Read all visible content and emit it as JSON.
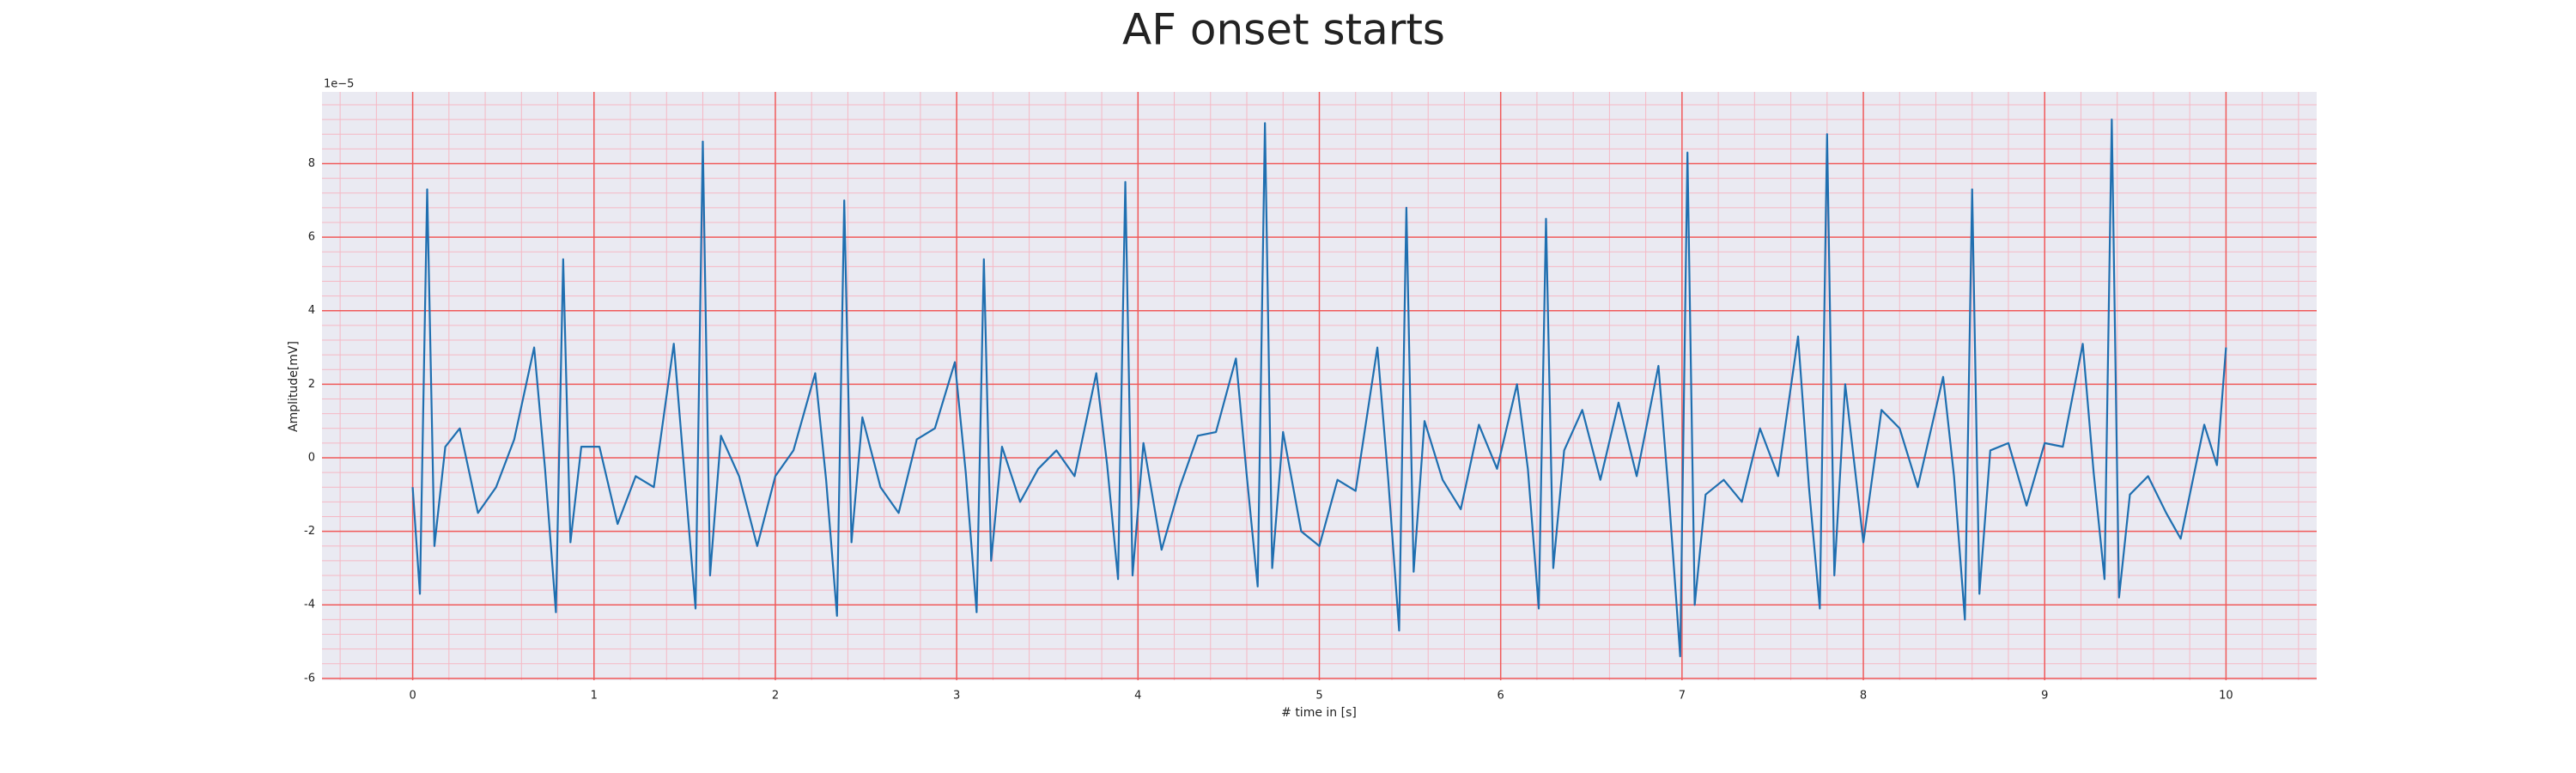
{
  "chart_data": {
    "type": "line",
    "title": "AF onset starts",
    "xlabel": "# time in [s]",
    "ylabel": "Amplitude[mV]",
    "y_offset_label": "1e−5",
    "xlim": [
      -0.5,
      10.5
    ],
    "xticks": [
      0,
      1,
      2,
      3,
      4,
      5,
      6,
      7,
      8,
      9,
      10
    ],
    "ylim": [
      -6.05,
      9.95
    ],
    "yticks": [
      -6,
      -4,
      -2,
      0,
      2,
      4,
      6,
      8
    ],
    "grid": true,
    "minor_grid": true,
    "background": "#eaeaf2",
    "grid_color": "#f05a5a",
    "minor_grid_color": "#f5b8c4",
    "series": [
      {
        "color": "#1f6fb0",
        "x": [
          0.0,
          0.04,
          0.08,
          0.12,
          0.18,
          0.26,
          0.36,
          0.46,
          0.56,
          0.67,
          0.73,
          0.79,
          0.83,
          0.87,
          0.93,
          1.03,
          1.13,
          1.23,
          1.33,
          1.44,
          1.5,
          1.56,
          1.6,
          1.64,
          1.7,
          1.8,
          1.9,
          2.0,
          2.1,
          2.22,
          2.28,
          2.34,
          2.38,
          2.42,
          2.48,
          2.58,
          2.68,
          2.78,
          2.88,
          2.99,
          3.05,
          3.11,
          3.15,
          3.19,
          3.25,
          3.35,
          3.45,
          3.55,
          3.65,
          3.77,
          3.83,
          3.89,
          3.93,
          3.97,
          4.03,
          4.13,
          4.23,
          4.33,
          4.43,
          4.54,
          4.6,
          4.66,
          4.7,
          4.74,
          4.8,
          4.9,
          5.0,
          5.1,
          5.2,
          5.32,
          5.38,
          5.44,
          5.48,
          5.52,
          5.58,
          5.68,
          5.78,
          5.88,
          5.98,
          6.09,
          6.15,
          6.21,
          6.25,
          6.29,
          6.35,
          6.45,
          6.55,
          6.65,
          6.75,
          6.87,
          6.93,
          6.99,
          7.03,
          7.07,
          7.13,
          7.23,
          7.33,
          7.43,
          7.53,
          7.64,
          7.7,
          7.76,
          7.8,
          7.84,
          7.9,
          8.0,
          8.1,
          8.2,
          8.3,
          8.44,
          8.5,
          8.56,
          8.6,
          8.64,
          8.7,
          8.8,
          8.9,
          9.0,
          9.1,
          9.21,
          9.27,
          9.33,
          9.37,
          9.41,
          9.47,
          9.57,
          9.67,
          9.75,
          9.88,
          9.95,
          10.0
        ],
        "values": [
          -0.8,
          -3.7,
          7.3,
          -2.4,
          0.3,
          0.8,
          -1.5,
          -0.8,
          0.5,
          3.0,
          -0.3,
          -4.2,
          5.4,
          -2.3,
          0.3,
          0.3,
          -1.8,
          -0.5,
          -0.8,
          3.1,
          -0.5,
          -4.1,
          8.6,
          -3.2,
          0.6,
          -0.5,
          -2.4,
          -0.5,
          0.2,
          2.3,
          -0.6,
          -4.3,
          7.0,
          -2.3,
          1.1,
          -0.8,
          -1.5,
          0.5,
          0.8,
          2.6,
          -0.4,
          -4.2,
          5.4,
          -2.8,
          0.3,
          -1.2,
          -0.3,
          0.2,
          -0.5,
          2.3,
          -0.2,
          -3.3,
          7.5,
          -3.2,
          0.4,
          -2.5,
          -0.8,
          0.6,
          0.7,
          2.7,
          -0.5,
          -3.5,
          9.1,
          -3.0,
          0.7,
          -2.0,
          -2.4,
          -0.6,
          -0.9,
          3.0,
          -0.6,
          -4.7,
          6.8,
          -3.1,
          1.0,
          -0.6,
          -1.4,
          0.9,
          -0.3,
          2.0,
          -0.3,
          -4.1,
          6.5,
          -3.0,
          0.2,
          1.3,
          -0.6,
          1.5,
          -0.5,
          2.5,
          -1.2,
          -5.4,
          8.3,
          -4.0,
          -1.0,
          -0.6,
          -1.2,
          0.8,
          -0.5,
          3.3,
          -0.8,
          -4.1,
          8.8,
          -3.2,
          2.0,
          -2.3,
          1.3,
          0.8,
          -0.8,
          2.2,
          -0.5,
          -4.4,
          7.3,
          -3.7,
          0.2,
          0.4,
          -1.3,
          0.4,
          0.3,
          3.1,
          -0.4,
          -3.3,
          9.2,
          -3.8,
          -1.0,
          -0.5,
          -1.5,
          -2.2,
          0.9,
          -0.2,
          3.0
        ]
      }
    ]
  }
}
